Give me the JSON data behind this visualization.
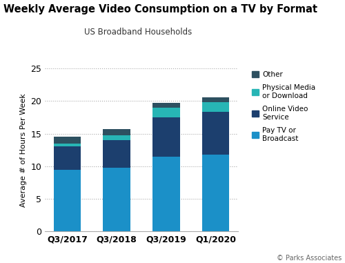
{
  "title": "Weekly Average Video Consumption on a TV by Format",
  "subtitle": "US Broadband Households",
  "ylabel": "Average # of Hours Per Week",
  "categories": [
    "Q3/2017",
    "Q3/2018",
    "Q3/2019",
    "Q1/2020"
  ],
  "layer_order": [
    "Pay TV or\nBroadcast",
    "Online Video\nService",
    "Physical Media\nor Download",
    "Other"
  ],
  "series": {
    "Pay TV or\nBroadcast": [
      9.5,
      9.8,
      11.5,
      11.8
    ],
    "Online Video\nService": [
      3.5,
      4.2,
      6.0,
      6.5
    ],
    "Physical Media\nor Download": [
      0.5,
      0.7,
      1.5,
      1.5
    ],
    "Other": [
      1.0,
      1.0,
      0.7,
      0.8
    ]
  },
  "colors": {
    "Pay TV or\nBroadcast": "#1b90c8",
    "Online Video\nService": "#1c3f6e",
    "Physical Media\nor Download": "#27b5b5",
    "Other": "#2d5060"
  },
  "legend_order": [
    "Other",
    "Physical Media\nor Download",
    "Online Video\nService",
    "Pay TV or\nBroadcast"
  ],
  "ylim": [
    0,
    25
  ],
  "yticks": [
    0,
    5,
    10,
    15,
    20,
    25
  ],
  "copyright": "© Parks Associates",
  "bar_width": 0.55
}
